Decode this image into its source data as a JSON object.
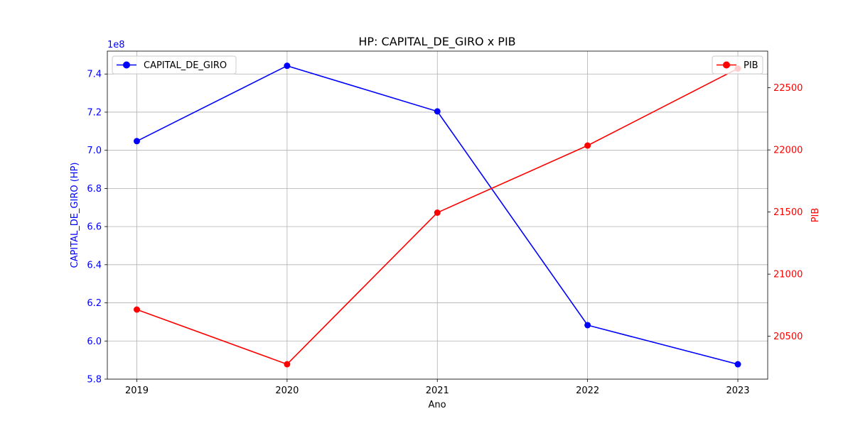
{
  "chart_data": {
    "type": "line",
    "title": "HP: CAPITAL_DE_GIRO x PIB",
    "xlabel": "Ano",
    "categories": [
      "2019",
      "2020",
      "2021",
      "2022",
      "2023"
    ],
    "y_left": {
      "label": "CAPITAL_DE_GIRO (HP)",
      "scale_label": "1e8",
      "ylim": [
        5.8,
        7.52
      ],
      "ticks": [
        5.8,
        6.0,
        6.2,
        6.4,
        6.6,
        6.8,
        7.0,
        7.2,
        7.4
      ],
      "tick_labels": [
        "5.8",
        "6.0",
        "6.2",
        "6.4",
        "6.6",
        "6.8",
        "7.0",
        "7.2",
        "7.4"
      ],
      "color": "#0000ff"
    },
    "y_right": {
      "label": "PIB",
      "ylim": [
        20155,
        22795
      ],
      "ticks": [
        20500,
        21000,
        21500,
        22000,
        22500
      ],
      "tick_labels": [
        "20500",
        "21000",
        "21500",
        "22000",
        "22500"
      ],
      "color": "#ff0000"
    },
    "series": [
      {
        "name": "CAPITAL_DE_GIRO",
        "axis": "left",
        "color": "#0000ff",
        "values": [
          7.048,
          7.443,
          7.204,
          6.083,
          5.878
        ],
        "legend_position": "upper-left"
      },
      {
        "name": "PIB",
        "axis": "right",
        "color": "#ff0000",
        "values": [
          20715,
          20275,
          21495,
          22035,
          22655
        ],
        "legend_position": "upper-right"
      }
    ],
    "grid": true
  }
}
